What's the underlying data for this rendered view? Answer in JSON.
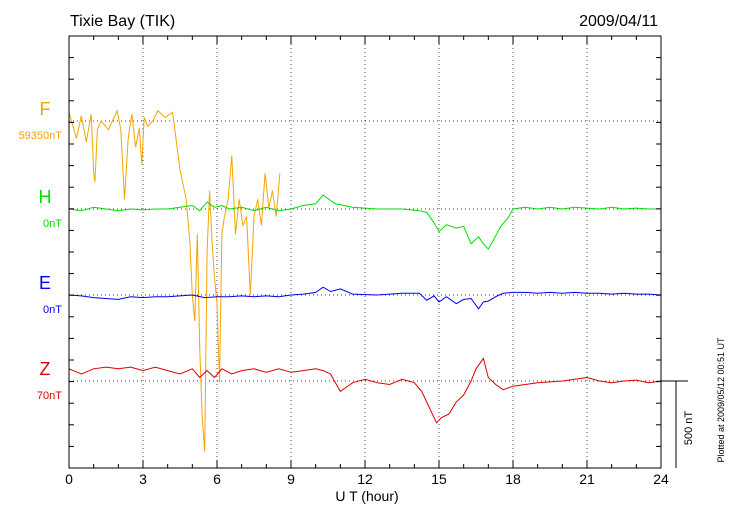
{
  "title": "Tixie Bay (TIK)",
  "date": "2009/04/11",
  "footnote": "Plotted at 2009/05/12 00:51 UT",
  "scale_bar_label": "500 nT",
  "chart_data": {
    "type": "line",
    "xlabel": "U T (hour)",
    "xlim": [
      0,
      24
    ],
    "xticks": [
      0,
      3,
      6,
      9,
      12,
      15,
      18,
      21,
      24
    ],
    "grid": true,
    "series": [
      {
        "name": "F",
        "baseline_label": "59350nT",
        "color": "#f5a500",
        "baseline_nT": 59350,
        "x": [
          0,
          0.3,
          0.5,
          0.7,
          0.9,
          1.0,
          1.05,
          1.15,
          1.3,
          1.6,
          1.95,
          2.1,
          2.25,
          2.4,
          2.55,
          2.7,
          2.85,
          2.95,
          3.05,
          3.2,
          3.4,
          3.6,
          3.9,
          4.2,
          4.5,
          4.75,
          4.9,
          5.0,
          5.1,
          5.2,
          5.3,
          5.4,
          5.5,
          5.6,
          5.7,
          5.8,
          5.9,
          6.0,
          6.1,
          6.2,
          6.3,
          6.45,
          6.6,
          6.75,
          6.9,
          7.05,
          7.2,
          7.35,
          7.5,
          7.65,
          7.8,
          7.95,
          8.1,
          8.25,
          8.4,
          8.55
        ],
        "values": [
          50,
          -100,
          30,
          -120,
          40,
          -300,
          -350,
          -50,
          0,
          -50,
          60,
          -50,
          -450,
          -100,
          40,
          -150,
          -40,
          -250,
          20,
          -30,
          0,
          60,
          20,
          50,
          -280,
          -450,
          -700,
          -1000,
          -1150,
          -650,
          -1300,
          -1700,
          -1900,
          -750,
          -400,
          -700,
          -900,
          -1050,
          -1500,
          -650,
          -550,
          -450,
          -200,
          -650,
          -450,
          -600,
          -550,
          -1000,
          -550,
          -450,
          -600,
          -300,
          -500,
          -400,
          -550,
          -300
        ]
      },
      {
        "name": "H",
        "baseline_label": "0nT",
        "color": "#00dd00",
        "baseline_nT": 0,
        "x": [
          0,
          0.5,
          1.0,
          1.5,
          2.0,
          2.5,
          3.0,
          3.5,
          4.0,
          4.5,
          5.0,
          5.3,
          5.6,
          5.9,
          6.2,
          6.5,
          7.0,
          7.5,
          8.0,
          8.5,
          9.0,
          9.5,
          10.0,
          10.3,
          10.5,
          10.8,
          11.5,
          12.5,
          13.5,
          14.2,
          14.5,
          14.8,
          15.0,
          15.3,
          15.7,
          16.0,
          16.3,
          16.6,
          16.8,
          17.0,
          17.2,
          17.5,
          17.8,
          18.0,
          18.5,
          19.0,
          19.5,
          20.0,
          20.5,
          21.0,
          21.5,
          22.0,
          22.5,
          23.0,
          23.5,
          24.0
        ],
        "values": [
          0,
          -10,
          10,
          0,
          -10,
          0,
          -5,
          0,
          0,
          10,
          20,
          -10,
          40,
          10,
          20,
          0,
          10,
          -10,
          10,
          -10,
          0,
          20,
          30,
          80,
          60,
          30,
          10,
          0,
          0,
          -10,
          -20,
          -80,
          -130,
          -90,
          -110,
          -100,
          -200,
          -160,
          -200,
          -230,
          -180,
          -100,
          -50,
          0,
          10,
          0,
          10,
          0,
          10,
          5,
          0,
          10,
          0,
          5,
          0,
          0
        ]
      },
      {
        "name": "E",
        "baseline_label": "0nT",
        "color": "#0000ee",
        "baseline_nT": 0,
        "x": [
          0,
          0.5,
          1.0,
          1.5,
          2.0,
          2.5,
          3.0,
          3.5,
          4.0,
          4.5,
          5.0,
          5.5,
          6.0,
          6.5,
          7.0,
          7.5,
          8.0,
          8.5,
          9.0,
          9.5,
          10.0,
          10.3,
          10.6,
          11.0,
          11.5,
          12.5,
          13.5,
          14.2,
          14.5,
          14.8,
          15.0,
          15.3,
          15.7,
          16.0,
          16.3,
          16.6,
          16.8,
          17.0,
          17.3,
          17.6,
          18.0,
          18.5,
          19.0,
          19.5,
          20.0,
          20.5,
          21.0,
          21.5,
          22.0,
          22.5,
          23.0,
          23.5,
          24.0
        ],
        "values": [
          0,
          -5,
          -15,
          -20,
          -25,
          -10,
          -15,
          -10,
          -10,
          -5,
          0,
          -15,
          -10,
          -10,
          -5,
          -10,
          -5,
          -10,
          0,
          5,
          15,
          45,
          20,
          35,
          5,
          0,
          10,
          10,
          -30,
          -5,
          -40,
          -10,
          -50,
          -25,
          -20,
          -80,
          -40,
          -35,
          -10,
          10,
          15,
          15,
          10,
          15,
          10,
          15,
          10,
          10,
          5,
          10,
          5,
          5,
          0
        ]
      },
      {
        "name": "Z",
        "baseline_label": "70nT",
        "color": "#dd0000",
        "baseline_nT": 70,
        "x": [
          0,
          0.5,
          1.0,
          1.5,
          2.0,
          2.5,
          3.0,
          3.5,
          4.0,
          4.5,
          5.0,
          5.3,
          5.6,
          5.9,
          6.2,
          6.6,
          7.0,
          7.5,
          8.0,
          8.5,
          9.0,
          9.5,
          10.0,
          10.3,
          10.6,
          11.0,
          11.5,
          12.0,
          12.5,
          13.0,
          13.5,
          14.0,
          14.3,
          14.6,
          14.9,
          15.1,
          15.4,
          15.7,
          16.0,
          16.3,
          16.5,
          16.8,
          17.0,
          17.3,
          17.6,
          18.0,
          18.5,
          19.0,
          19.5,
          20.0,
          20.5,
          21.0,
          21.5,
          22.0,
          22.5,
          23.0,
          23.5,
          24.0
        ],
        "values": [
          70,
          40,
          70,
          80,
          70,
          80,
          60,
          80,
          60,
          40,
          70,
          20,
          60,
          20,
          70,
          40,
          60,
          70,
          50,
          70,
          50,
          60,
          70,
          60,
          40,
          -60,
          -10,
          10,
          -10,
          -20,
          10,
          -10,
          -60,
          -150,
          -240,
          -210,
          -190,
          -120,
          -80,
          0,
          70,
          130,
          20,
          -20,
          -50,
          -30,
          -20,
          -10,
          -5,
          0,
          10,
          20,
          0,
          -10,
          0,
          5,
          -10,
          0
        ]
      }
    ]
  }
}
